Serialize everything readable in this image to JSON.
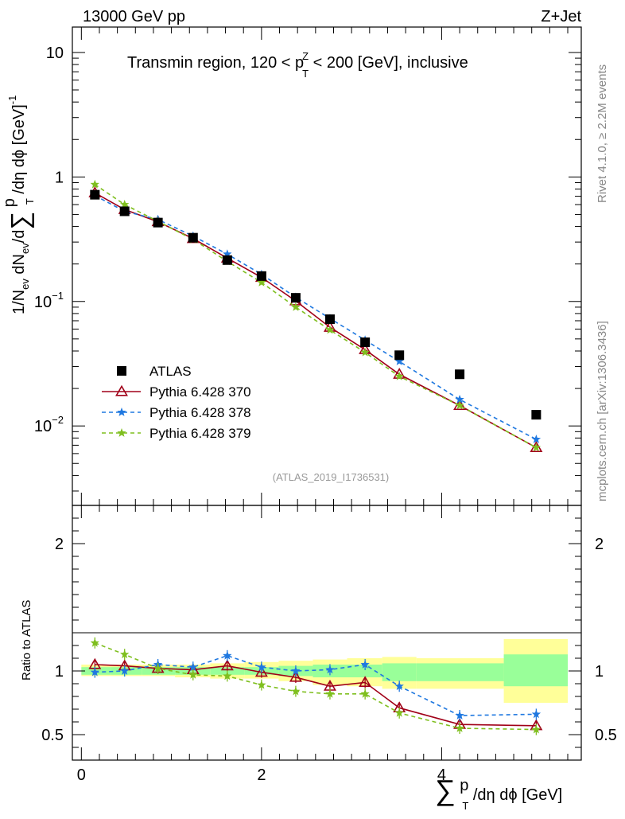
{
  "header": {
    "left": "13000 GeV pp",
    "right": "Z+Jet"
  },
  "title": {
    "main": "Transmin region, 120 < p",
    "sup": "Z",
    "sub": "T",
    "rest": " < 200 [GeV], inclusive"
  },
  "side_labels": {
    "rivet": "Rivet 4.1.0, ≥ 2.2M events",
    "mcplots": "mcplots.cern.ch [arXiv:1306.3436]"
  },
  "analysis_tag": "(ATLAS_2019_I1736531)",
  "axes": {
    "top_ylabel": {
      "a": "1/N",
      "a_sub": "ev",
      "b": " dN",
      "b_sub": "ev",
      "c": "/d",
      "sum": "∑",
      "d": " p",
      "d_sub": "T",
      "e": " /dη dϕ  [GeV]",
      "e_sup": "-1"
    },
    "bottom_ylabel": "Ratio to ATLAS",
    "xlabel": {
      "sum": "∑",
      "p": " p",
      "p_sub": "T",
      "rest": " /dη dϕ [GeV]"
    },
    "top_ticks": [
      {
        "value": 10,
        "label": "10",
        "sup": ""
      },
      {
        "value": 1,
        "label": "1",
        "sup": ""
      },
      {
        "value": 0.1,
        "label": "10",
        "sup": "−1"
      },
      {
        "value": 0.01,
        "label": "10",
        "sup": "−2"
      }
    ],
    "ratio_ticks": [
      {
        "value": 0.5,
        "label": "0.5"
      },
      {
        "value": 1,
        "label": "1"
      },
      {
        "value": 2,
        "label": "2"
      }
    ],
    "x_ticks": [
      {
        "value": 0,
        "label": "0"
      },
      {
        "value": 2,
        "label": "2"
      },
      {
        "value": 4,
        "label": "4"
      }
    ]
  },
  "legend": [
    {
      "label": "ATLAS",
      "color": "#000000",
      "marker": "square",
      "dash": false
    },
    {
      "label": "Pythia 6.428 370",
      "color": "#a00018",
      "marker": "triangle",
      "dash": false
    },
    {
      "label": "Pythia 6.428 378",
      "color": "#1f78e0",
      "marker": "star",
      "dash": true
    },
    {
      "label": "Pythia 6.428 379",
      "color": "#7fbf1f",
      "marker": "star",
      "dash": true
    }
  ],
  "chart_data": {
    "type": "line",
    "title": "Transmin region, 120 < p_T^Z < 200 [GeV], inclusive",
    "xlabel": "∑ p_T /dη dϕ [GeV]",
    "ylabel": "1/N_ev dN_ev/d∑ p_T /dη dϕ [GeV]^-1",
    "xlim": [
      -0.1,
      5.55
    ],
    "ylim": [
      0.0023,
      16
    ],
    "yscale": "log",
    "ratio_ylim": [
      0.3,
      2.3
    ],
    "x": [
      0.15,
      0.48,
      0.85,
      1.24,
      1.62,
      2.0,
      2.38,
      2.76,
      3.15,
      3.53,
      4.2,
      5.05
    ],
    "series": [
      {
        "name": "ATLAS",
        "values": [
          0.72,
          0.53,
          0.43,
          0.325,
          0.215,
          0.16,
          0.107,
          0.072,
          0.047,
          0.037,
          0.026,
          0.0123
        ]
      },
      {
        "name": "Pythia 6.428 370",
        "values": [
          0.745,
          0.547,
          0.437,
          0.32,
          0.223,
          0.156,
          0.101,
          0.062,
          0.041,
          0.026,
          0.0146,
          0.0067
        ]
      },
      {
        "name": "Pythia 6.428 378",
        "values": [
          0.71,
          0.53,
          0.455,
          0.335,
          0.24,
          0.165,
          0.108,
          0.073,
          0.049,
          0.033,
          0.0163,
          0.0078
        ]
      },
      {
        "name": "Pythia 6.428 379",
        "values": [
          0.87,
          0.6,
          0.44,
          0.315,
          0.21,
          0.142,
          0.09,
          0.059,
          0.039,
          0.025,
          0.0146,
          0.0067
        ]
      }
    ],
    "ratios": [
      {
        "name": "Pythia 6.428 370",
        "values": [
          1.05,
          1.04,
          1.02,
          1.01,
          1.04,
          0.99,
          0.95,
          0.88,
          0.91,
          0.71,
          0.58,
          0.57
        ]
      },
      {
        "name": "Pythia 6.428 378",
        "values": [
          0.99,
          1.0,
          1.05,
          1.03,
          1.12,
          1.03,
          1.0,
          1.01,
          1.05,
          0.88,
          0.65,
          0.66
        ]
      },
      {
        "name": "Pythia 6.428 379",
        "values": [
          1.22,
          1.13,
          1.02,
          0.97,
          0.96,
          0.89,
          0.84,
          0.82,
          0.82,
          0.67,
          0.55,
          0.54
        ]
      }
    ],
    "uncertainty_bands": {
      "edges": [
        0,
        0.33,
        0.67,
        1.04,
        1.43,
        1.81,
        2.19,
        2.57,
        2.95,
        3.34,
        3.72,
        4.69,
        5.4
      ],
      "inner": [
        [
          0.97,
          1.03
        ],
        [
          0.97,
          1.03
        ],
        [
          0.97,
          1.03
        ],
        [
          0.97,
          1.03
        ],
        [
          0.97,
          1.03
        ],
        [
          0.97,
          1.03
        ],
        [
          0.96,
          1.04
        ],
        [
          0.95,
          1.05
        ],
        [
          0.95,
          1.05
        ],
        [
          0.92,
          1.06
        ],
        [
          0.92,
          1.06
        ],
        [
          0.88,
          1.13
        ]
      ],
      "outer": [
        [
          0.96,
          1.05
        ],
        [
          0.96,
          1.05
        ],
        [
          0.96,
          1.05
        ],
        [
          0.95,
          1.05
        ],
        [
          0.94,
          1.06
        ],
        [
          0.94,
          1.07
        ],
        [
          0.92,
          1.08
        ],
        [
          0.89,
          1.09
        ],
        [
          0.88,
          1.1
        ],
        [
          0.86,
          1.11
        ],
        [
          0.86,
          1.1
        ],
        [
          0.75,
          1.25
        ]
      ]
    },
    "legend_position": "middle-left"
  }
}
